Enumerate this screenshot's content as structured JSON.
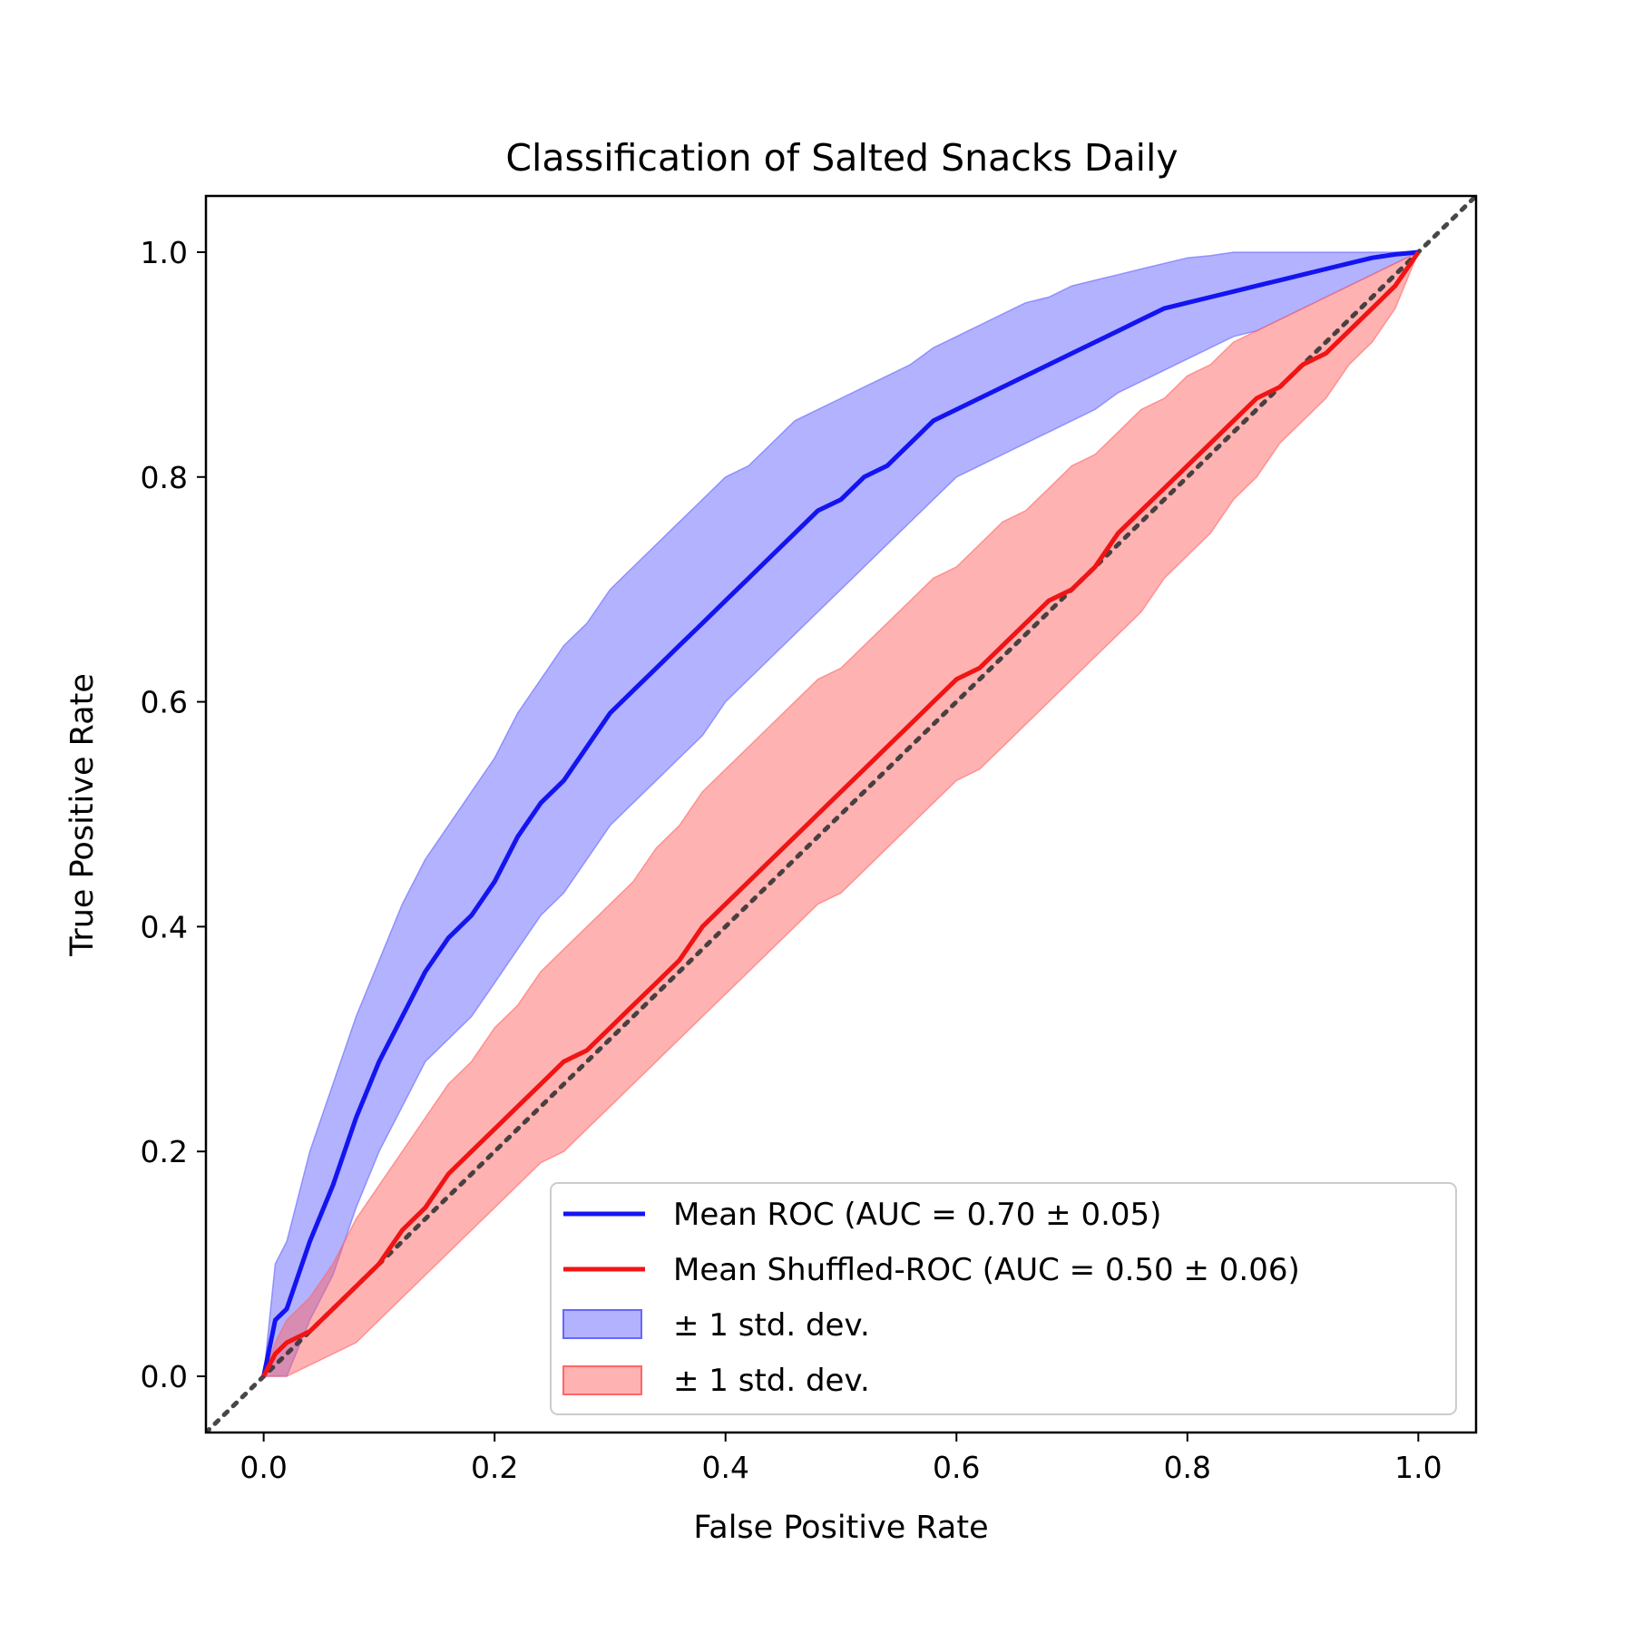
{
  "chart_data": {
    "type": "line",
    "title": "Classification of Salted Snacks Daily",
    "xlabel": "False Positive Rate",
    "ylabel": "True Positive Rate",
    "xlim": [
      -0.05,
      1.05
    ],
    "ylim": [
      -0.05,
      1.05
    ],
    "xticks": [
      "0.0",
      "0.2",
      "0.4",
      "0.6",
      "0.8",
      "1.0"
    ],
    "yticks": [
      "0.0",
      "0.2",
      "0.4",
      "0.6",
      "0.8",
      "1.0"
    ],
    "grid": false,
    "legend_position": "lower right",
    "chance_line": {
      "x": [
        -0.05,
        1.05
      ],
      "y": [
        -0.05,
        1.05
      ],
      "color": "#333333",
      "style": "dotted"
    },
    "series": [
      {
        "name": "Mean ROC (AUC = 0.70 ± 0.05)",
        "color": "#1414f0",
        "x": [
          0.0,
          0.01,
          0.02,
          0.04,
          0.06,
          0.08,
          0.1,
          0.12,
          0.14,
          0.16,
          0.18,
          0.2,
          0.22,
          0.24,
          0.26,
          0.28,
          0.3,
          0.32,
          0.34,
          0.36,
          0.38,
          0.4,
          0.42,
          0.44,
          0.46,
          0.48,
          0.5,
          0.52,
          0.54,
          0.56,
          0.58,
          0.6,
          0.62,
          0.64,
          0.66,
          0.68,
          0.7,
          0.72,
          0.74,
          0.76,
          0.78,
          0.8,
          0.82,
          0.84,
          0.86,
          0.88,
          0.9,
          0.92,
          0.94,
          0.96,
          0.98,
          1.0
        ],
        "y": [
          0.0,
          0.05,
          0.06,
          0.12,
          0.17,
          0.23,
          0.28,
          0.32,
          0.36,
          0.39,
          0.41,
          0.44,
          0.48,
          0.51,
          0.53,
          0.56,
          0.59,
          0.61,
          0.63,
          0.65,
          0.67,
          0.69,
          0.71,
          0.73,
          0.75,
          0.77,
          0.78,
          0.8,
          0.81,
          0.83,
          0.85,
          0.86,
          0.87,
          0.88,
          0.89,
          0.9,
          0.91,
          0.92,
          0.93,
          0.94,
          0.95,
          0.955,
          0.96,
          0.965,
          0.97,
          0.975,
          0.98,
          0.985,
          0.99,
          0.995,
          0.998,
          1.0
        ],
        "std_upper": [
          0.0,
          0.1,
          0.12,
          0.2,
          0.26,
          0.32,
          0.37,
          0.42,
          0.46,
          0.49,
          0.52,
          0.55,
          0.59,
          0.62,
          0.65,
          0.67,
          0.7,
          0.72,
          0.74,
          0.76,
          0.78,
          0.8,
          0.81,
          0.83,
          0.85,
          0.86,
          0.87,
          0.88,
          0.89,
          0.9,
          0.915,
          0.925,
          0.935,
          0.945,
          0.955,
          0.96,
          0.97,
          0.975,
          0.98,
          0.985,
          0.99,
          0.995,
          0.997,
          1.0,
          1.0,
          1.0,
          1.0,
          1.0,
          1.0,
          1.0,
          1.0,
          1.0
        ],
        "std_lower": [
          0.0,
          0.0,
          0.0,
          0.05,
          0.09,
          0.15,
          0.2,
          0.24,
          0.28,
          0.3,
          0.32,
          0.35,
          0.38,
          0.41,
          0.43,
          0.46,
          0.49,
          0.51,
          0.53,
          0.55,
          0.57,
          0.6,
          0.62,
          0.64,
          0.66,
          0.68,
          0.7,
          0.72,
          0.74,
          0.76,
          0.78,
          0.8,
          0.81,
          0.82,
          0.83,
          0.84,
          0.85,
          0.86,
          0.875,
          0.885,
          0.895,
          0.905,
          0.915,
          0.925,
          0.93,
          0.94,
          0.95,
          0.96,
          0.97,
          0.98,
          0.99,
          1.0
        ],
        "band_color": "#6666ff",
        "band_label": "± 1 std. dev."
      },
      {
        "name": "Mean Shuffled-ROC (AUC = 0.50 ± 0.06)",
        "color": "#f01414",
        "x": [
          0.0,
          0.01,
          0.02,
          0.04,
          0.06,
          0.08,
          0.1,
          0.12,
          0.14,
          0.16,
          0.18,
          0.2,
          0.22,
          0.24,
          0.26,
          0.28,
          0.3,
          0.32,
          0.34,
          0.36,
          0.38,
          0.4,
          0.42,
          0.44,
          0.46,
          0.48,
          0.5,
          0.52,
          0.54,
          0.56,
          0.58,
          0.6,
          0.62,
          0.64,
          0.66,
          0.68,
          0.7,
          0.72,
          0.74,
          0.76,
          0.78,
          0.8,
          0.82,
          0.84,
          0.86,
          0.88,
          0.9,
          0.92,
          0.94,
          0.96,
          0.98,
          1.0
        ],
        "y": [
          0.0,
          0.02,
          0.03,
          0.04,
          0.06,
          0.08,
          0.1,
          0.13,
          0.15,
          0.18,
          0.2,
          0.22,
          0.24,
          0.26,
          0.28,
          0.29,
          0.31,
          0.33,
          0.35,
          0.37,
          0.4,
          0.42,
          0.44,
          0.46,
          0.48,
          0.5,
          0.52,
          0.54,
          0.56,
          0.58,
          0.6,
          0.62,
          0.63,
          0.65,
          0.67,
          0.69,
          0.7,
          0.72,
          0.75,
          0.77,
          0.79,
          0.81,
          0.83,
          0.85,
          0.87,
          0.88,
          0.9,
          0.91,
          0.93,
          0.95,
          0.97,
          1.0
        ],
        "std_upper": [
          0.0,
          0.03,
          0.05,
          0.07,
          0.1,
          0.14,
          0.17,
          0.2,
          0.23,
          0.26,
          0.28,
          0.31,
          0.33,
          0.36,
          0.38,
          0.4,
          0.42,
          0.44,
          0.47,
          0.49,
          0.52,
          0.54,
          0.56,
          0.58,
          0.6,
          0.62,
          0.63,
          0.65,
          0.67,
          0.69,
          0.71,
          0.72,
          0.74,
          0.76,
          0.77,
          0.79,
          0.81,
          0.82,
          0.84,
          0.86,
          0.87,
          0.89,
          0.9,
          0.92,
          0.93,
          0.94,
          0.95,
          0.96,
          0.97,
          0.98,
          0.99,
          1.0
        ],
        "std_lower": [
          0.0,
          0.0,
          0.0,
          0.01,
          0.02,
          0.03,
          0.05,
          0.07,
          0.09,
          0.11,
          0.13,
          0.15,
          0.17,
          0.19,
          0.2,
          0.22,
          0.24,
          0.26,
          0.28,
          0.3,
          0.32,
          0.34,
          0.36,
          0.38,
          0.4,
          0.42,
          0.43,
          0.45,
          0.47,
          0.49,
          0.51,
          0.53,
          0.54,
          0.56,
          0.58,
          0.6,
          0.62,
          0.64,
          0.66,
          0.68,
          0.71,
          0.73,
          0.75,
          0.78,
          0.8,
          0.83,
          0.85,
          0.87,
          0.9,
          0.92,
          0.95,
          1.0
        ],
        "band_color": "#ff6666",
        "band_label": "± 1 std. dev."
      }
    ]
  }
}
